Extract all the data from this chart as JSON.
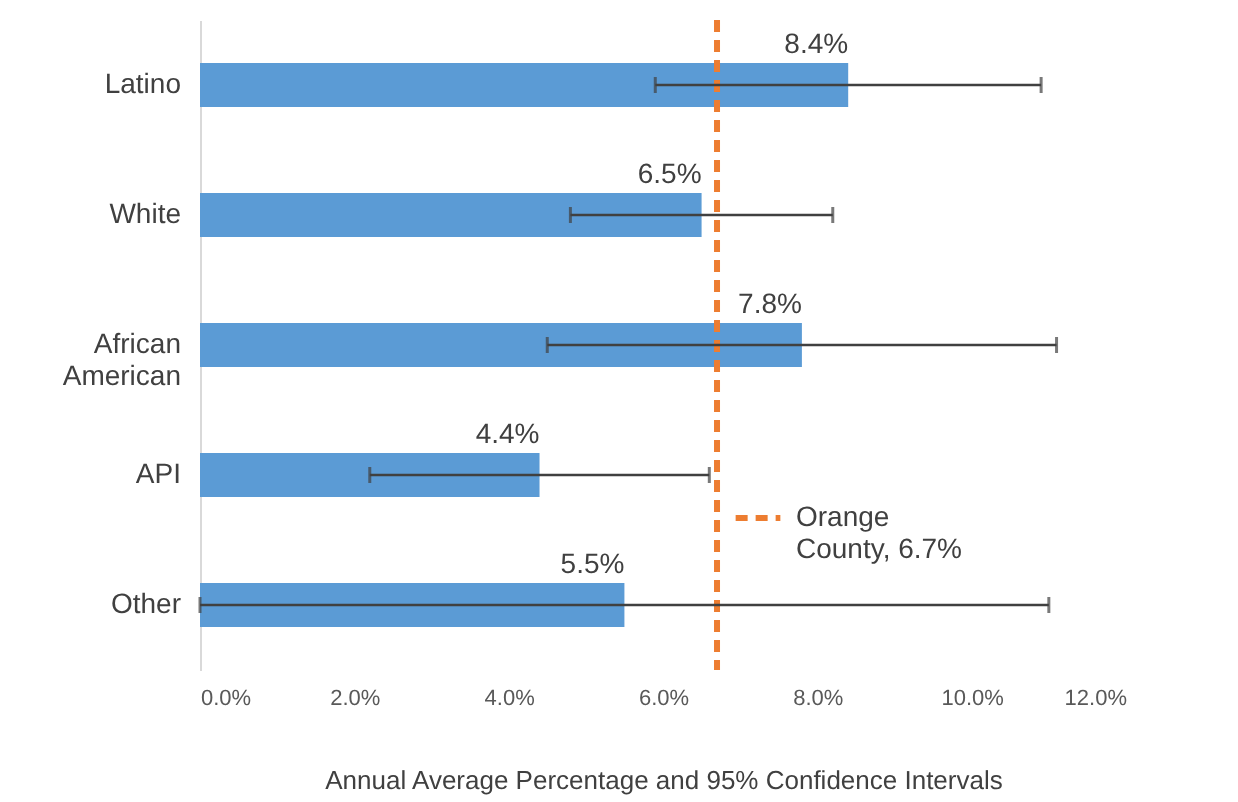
{
  "chart_data": {
    "type": "bar",
    "orientation": "horizontal",
    "xlabel": "Annual Average Percentage and 95% Confidence Intervals",
    "categories": [
      "Latino",
      "White",
      "African American",
      "API",
      "Other"
    ],
    "values": [
      8.4,
      6.5,
      7.8,
      4.4,
      5.5
    ],
    "color": "#5b9bd5",
    "errors": [
      [
        5.9,
        10.9
      ],
      [
        4.8,
        8.2
      ],
      [
        4.5,
        11.1
      ],
      [
        2.2,
        6.6
      ],
      [
        0,
        11.0
      ]
    ],
    "value_labels": [
      "8.4%",
      "6.5%",
      "7.8%",
      "4.4%",
      "5.5%"
    ],
    "xlim": [
      0,
      12
    ],
    "xticks": [
      {
        "value": 0,
        "label": "0.0%"
      },
      {
        "value": 2,
        "label": "2.0%"
      },
      {
        "value": 4,
        "label": "4.0%"
      },
      {
        "value": 6,
        "label": "6.0%"
      },
      {
        "value": 8,
        "label": "8.0%"
      },
      {
        "value": 10,
        "label": "10.0%"
      },
      {
        "value": 12,
        "label": "12.0%"
      }
    ],
    "ref_lines": [
      {
        "axis": "x",
        "value": 6.7,
        "label": "Orange County, 6.7%",
        "color": "#ed7d31",
        "line_style": "dashed"
      }
    ],
    "legend": "right",
    "grid": false
  }
}
